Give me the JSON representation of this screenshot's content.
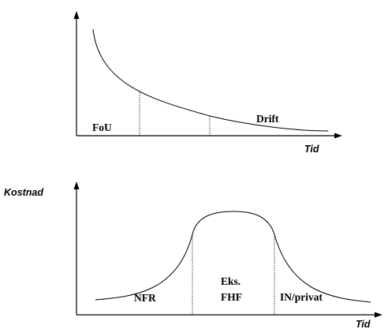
{
  "top_diagram": {
    "x_axis_label": "Tid",
    "region_labels": {
      "left": "FoU",
      "right": "Drift"
    }
  },
  "bottom_diagram": {
    "y_axis_label": "Kostnad",
    "x_axis_label": "Tid",
    "region_labels": {
      "left": "NFR",
      "middle_line1": "Eks.",
      "middle_line2": "FHF",
      "right": "IN/privat"
    }
  }
}
